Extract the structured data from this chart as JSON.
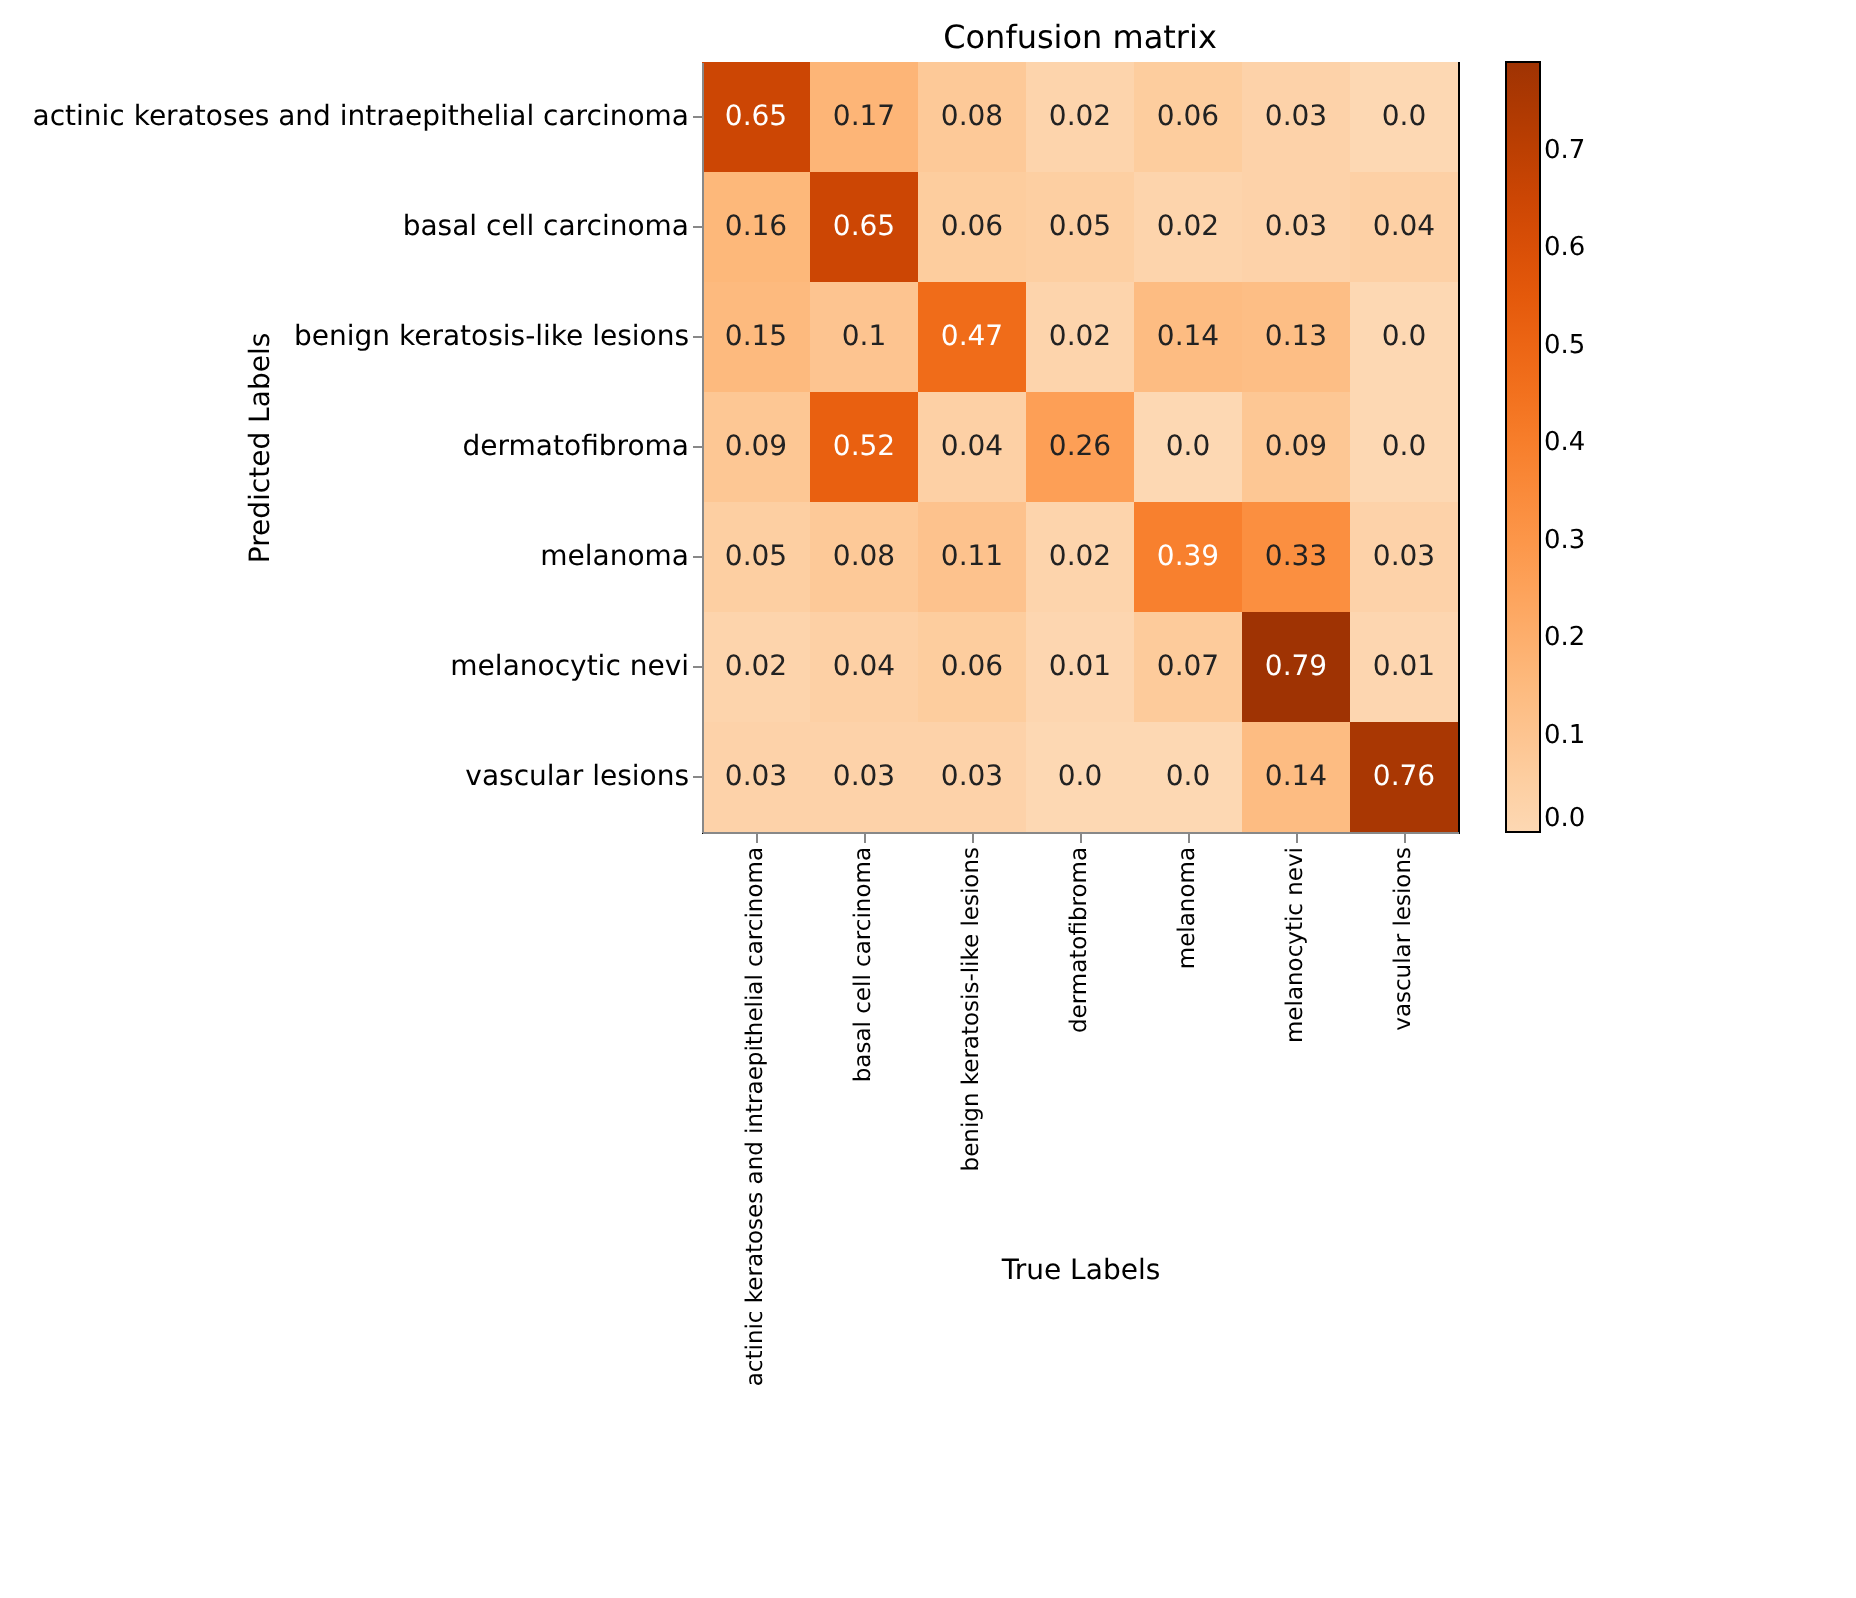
{
  "chart_data": {
    "type": "heatmap",
    "title": "Confusion matrix",
    "xlabel": "True Labels",
    "ylabel": "Predicted Labels",
    "categories": [
      "actinic keratoses and intraepithelial carcinoma",
      "basal cell carcinoma",
      "benign keratosis-like lesions",
      "dermatofibroma",
      "melanoma",
      "melanocytic nevi",
      "vascular lesions"
    ],
    "y_categories": [
      "actinic keratoses and intraepithelial carcinoma",
      "basal cell carcinoma",
      "benign keratosis-like lesions",
      "dermatofibroma",
      "melanoma",
      "melanocytic nevi",
      "vascular lesions"
    ],
    "cells": [
      [
        0.65,
        0.17,
        0.08,
        0.02,
        0.06,
        0.03,
        0
      ],
      [
        0.16,
        0.65,
        0.06,
        0.05,
        0.02,
        0.03,
        0.04
      ],
      [
        0.15,
        0.1,
        0.47,
        0.02,
        0.14,
        0.13,
        0
      ],
      [
        0.09,
        0.52,
        0.04,
        0.26,
        0,
        0.09,
        0
      ],
      [
        0.05,
        0.08,
        0.11,
        0.02,
        0.39,
        0.33,
        0.03
      ],
      [
        0.02,
        0.04,
        0.06,
        0.01,
        0.07,
        0.79,
        0.01
      ],
      [
        0.03,
        0.03,
        0.03,
        0,
        0,
        0.14,
        0.76
      ]
    ],
    "cell_labels": [
      [
        "0.65",
        "0.17",
        "0.08",
        "0.02",
        "0.06",
        "0.03",
        "0.0"
      ],
      [
        "0.16",
        "0.65",
        "0.06",
        "0.05",
        "0.02",
        "0.03",
        "0.04"
      ],
      [
        "0.15",
        "0.1",
        "0.47",
        "0.02",
        "0.14",
        "0.13",
        "0.0"
      ],
      [
        "0.09",
        "0.52",
        "0.04",
        "0.26",
        "0.0",
        "0.09",
        "0.0"
      ],
      [
        "0.05",
        "0.08",
        "0.11",
        "0.02",
        "0.39",
        "0.33",
        "0.03"
      ],
      [
        "0.02",
        "0.04",
        "0.06",
        "0.01",
        "0.07",
        "0.79",
        "0.01"
      ],
      [
        "0.03",
        "0.03",
        "0.03",
        "0.0",
        "0.0",
        "0.14",
        "0.76"
      ]
    ],
    "clim": [
      0,
      0.79
    ],
    "cticks": [
      {
        "value": 0,
        "label": "0.0"
      },
      0.1,
      0.2,
      0.3,
      0.4,
      0.5,
      0.6,
      0.7
    ]
  }
}
